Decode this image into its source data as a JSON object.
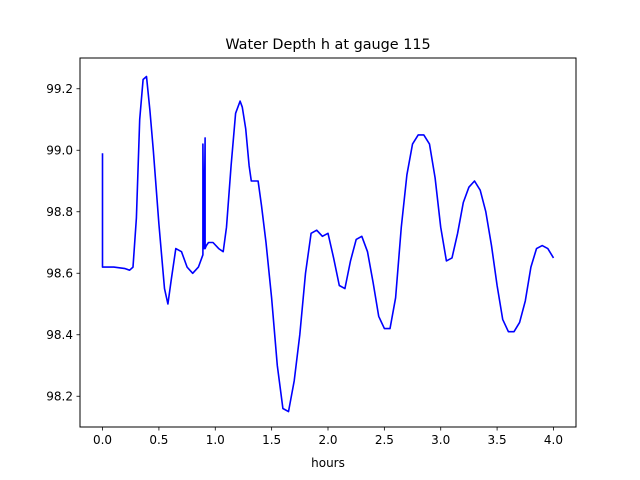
{
  "chart_data": {
    "type": "line",
    "title": "Water Depth h at gauge 115",
    "xlabel": "hours",
    "ylabel": "",
    "xlim": [
      -0.2,
      4.2
    ],
    "ylim": [
      98.1,
      99.3
    ],
    "xticks": [
      0.0,
      0.5,
      1.0,
      1.5,
      2.0,
      2.5,
      3.0,
      3.5,
      4.0
    ],
    "xtick_labels": [
      "0.0",
      "0.5",
      "1.0",
      "1.5",
      "2.0",
      "2.5",
      "3.0",
      "3.5",
      "4.0"
    ],
    "yticks": [
      98.2,
      98.4,
      98.6,
      98.8,
      99.0,
      99.2
    ],
    "ytick_labels": [
      "98.2",
      "98.4",
      "98.6",
      "98.8",
      "99.0",
      "99.2"
    ],
    "grid": false,
    "series": [
      {
        "color": "#0000ff",
        "x": [
          0.0,
          0.0,
          0.0,
          0.1,
          0.2,
          0.24,
          0.27,
          0.3,
          0.33,
          0.36,
          0.39,
          0.42,
          0.45,
          0.5,
          0.55,
          0.58,
          0.61,
          0.65,
          0.7,
          0.75,
          0.8,
          0.85,
          0.89,
          0.89,
          0.9,
          0.91,
          0.91,
          0.92,
          0.94,
          0.98,
          1.03,
          1.07,
          1.1,
          1.14,
          1.18,
          1.22,
          1.24,
          1.27,
          1.3,
          1.32,
          1.35,
          1.38,
          1.41,
          1.45,
          1.5,
          1.55,
          1.6,
          1.65,
          1.7,
          1.75,
          1.8,
          1.85,
          1.9,
          1.95,
          2.0,
          2.05,
          2.1,
          2.15,
          2.2,
          2.25,
          2.3,
          2.35,
          2.4,
          2.45,
          2.5,
          2.55,
          2.6,
          2.65,
          2.7,
          2.75,
          2.8,
          2.85,
          2.9,
          2.95,
          3.0,
          3.05,
          3.1,
          3.15,
          3.2,
          3.25,
          3.3,
          3.35,
          3.4,
          3.45,
          3.5,
          3.55,
          3.6,
          3.65,
          3.7,
          3.75,
          3.8,
          3.85,
          3.9,
          3.95,
          4.0
        ],
        "y": [
          98.99,
          98.62,
          98.62,
          98.62,
          98.615,
          98.61,
          98.62,
          98.78,
          99.1,
          99.23,
          99.24,
          99.13,
          99.0,
          98.76,
          98.55,
          98.5,
          98.58,
          98.68,
          98.67,
          98.62,
          98.6,
          98.62,
          98.66,
          99.02,
          98.68,
          99.04,
          98.68,
          98.69,
          98.7,
          98.7,
          98.68,
          98.67,
          98.75,
          98.95,
          99.12,
          99.16,
          99.14,
          99.07,
          98.95,
          98.9,
          98.9,
          98.9,
          98.82,
          98.7,
          98.52,
          98.3,
          98.16,
          98.15,
          98.25,
          98.4,
          98.6,
          98.73,
          98.74,
          98.72,
          98.73,
          98.65,
          98.56,
          98.55,
          98.64,
          98.71,
          98.72,
          98.67,
          98.57,
          98.46,
          98.42,
          98.42,
          98.52,
          98.75,
          98.92,
          99.02,
          99.05,
          99.05,
          99.02,
          98.91,
          98.75,
          98.64,
          98.65,
          98.73,
          98.83,
          98.88,
          98.9,
          98.87,
          98.8,
          98.69,
          98.56,
          98.45,
          98.41,
          98.41,
          98.44,
          98.51,
          98.62,
          98.68,
          98.69,
          98.68,
          98.65
        ]
      }
    ]
  }
}
